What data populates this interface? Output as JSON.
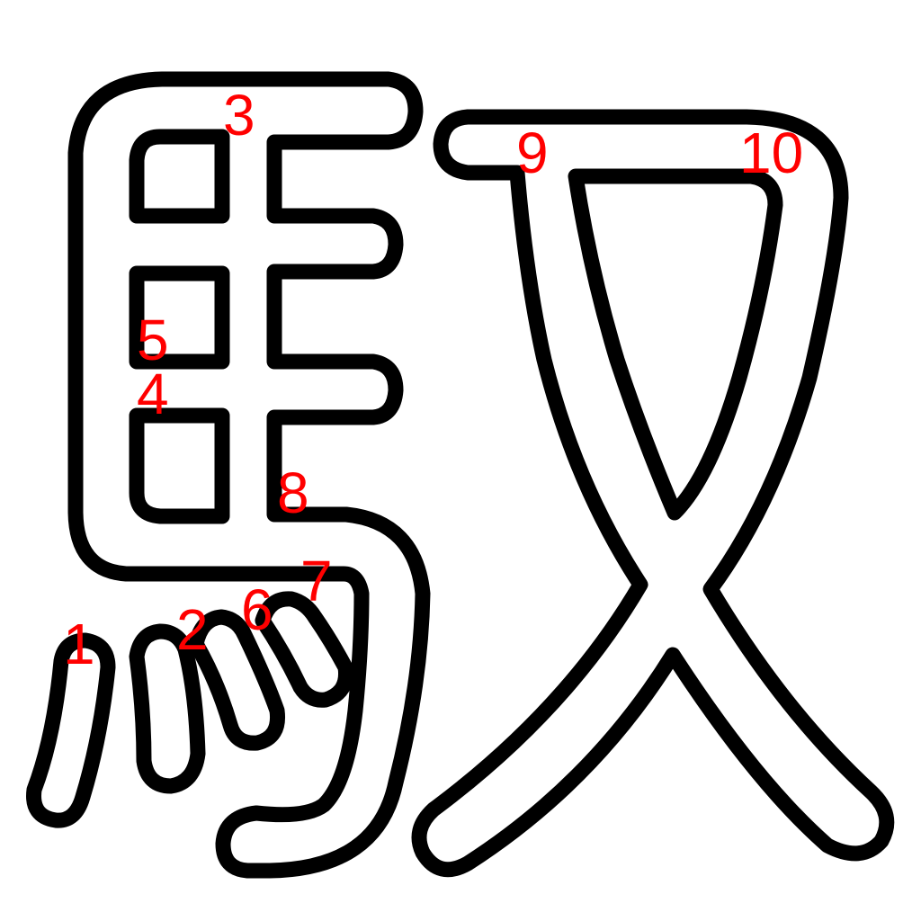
{
  "colors": {
    "background": "#ffffff",
    "outline": "#000000",
    "label": "#ff0000"
  },
  "strokes": [
    {
      "id": "s1",
      "label": "1"
    },
    {
      "id": "s2",
      "label": "2"
    },
    {
      "id": "s3",
      "label": "3"
    },
    {
      "id": "s4",
      "label": "4"
    },
    {
      "id": "s5",
      "label": "5"
    },
    {
      "id": "s6",
      "label": "6"
    },
    {
      "id": "s7",
      "label": "7"
    },
    {
      "id": "s8",
      "label": "8"
    },
    {
      "id": "s9",
      "label": "9"
    },
    {
      "id": "s10",
      "label": "10"
    }
  ]
}
